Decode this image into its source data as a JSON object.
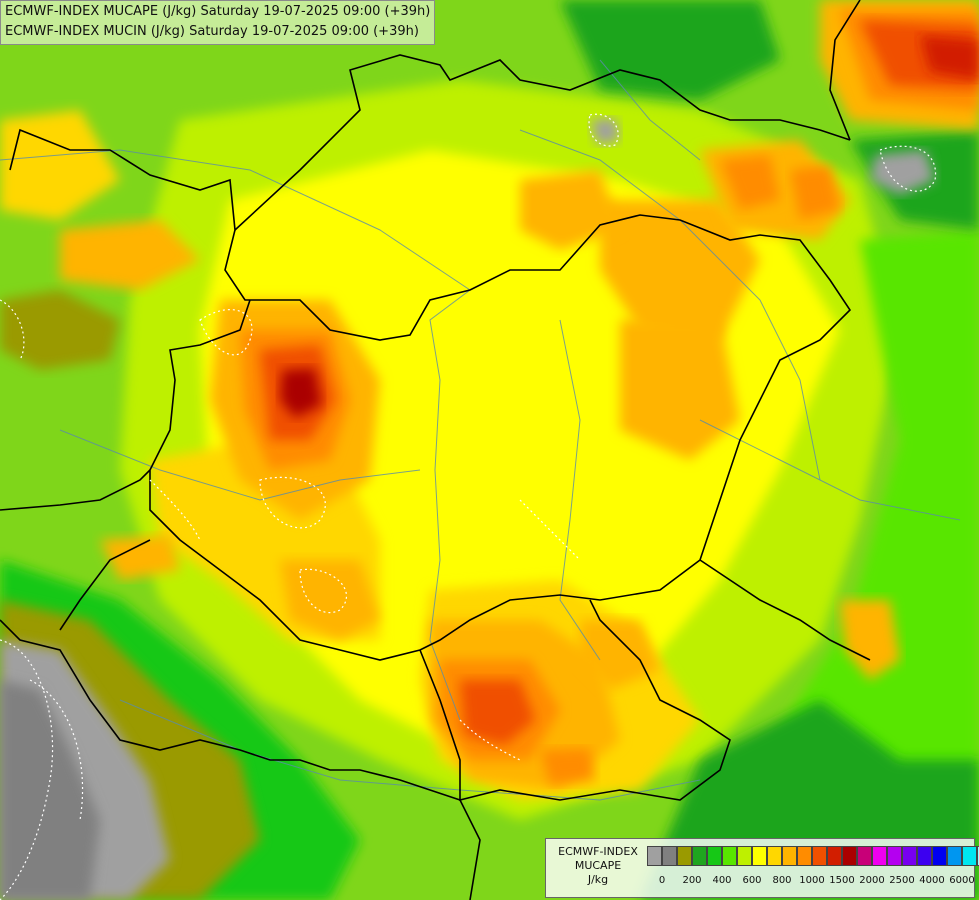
{
  "title": {
    "line1": "ECMWF-INDEX MUCAPE (J/kg) Saturday 19-07-2025 09:00 (+39h)",
    "line2": "ECMWF-INDEX MUCIN (J/kg) Saturday 19-07-2025 09:00 (+39h)"
  },
  "legend": {
    "line1": "ECMWF-INDEX",
    "line2": "MUCAPE",
    "line3": "J/kg",
    "colors": [
      "#a0a0a0",
      "#808080",
      "#9a9a00",
      "#1fa51f",
      "#16c816",
      "#58e600",
      "#bef000",
      "#ffff00",
      "#ffd700",
      "#ffb400",
      "#ff8c00",
      "#f05000",
      "#d21e00",
      "#aa0000",
      "#c80078",
      "#f000f0",
      "#b400f0",
      "#7800f0",
      "#3c00f0",
      "#0000f0",
      "#0096f0",
      "#00e6f0",
      "#96ffff",
      "#ffffff"
    ],
    "ticks": [
      "0",
      "200",
      "400",
      "600",
      "800",
      "1000",
      "1500",
      "2000",
      "2500",
      "4000",
      "6000"
    ]
  }
}
